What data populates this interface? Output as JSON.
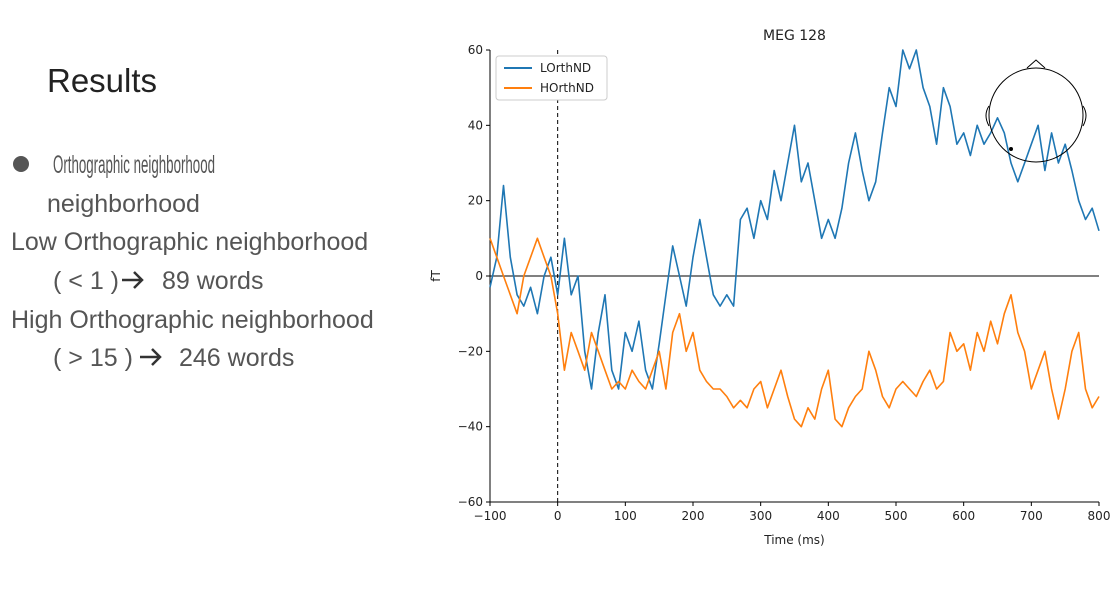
{
  "slide": {
    "title": "Results",
    "bullet": "Orthographic neighborhood",
    "items": [
      {
        "label": "Low Orthographic neighborhood",
        "condition": "( < 1 )",
        "count": "89 words"
      },
      {
        "label": "High Orthographic neighborhood",
        "condition": "( > 15 )",
        "count": "246 words"
      }
    ]
  },
  "chart_data": {
    "type": "line",
    "title": "MEG 128",
    "xlabel": "Time (ms)",
    "ylabel": "fT",
    "x": [
      -100,
      -90,
      -80,
      -70,
      -60,
      -50,
      -40,
      -30,
      -20,
      -10,
      0,
      10,
      20,
      30,
      40,
      50,
      60,
      70,
      80,
      90,
      100,
      110,
      120,
      130,
      140,
      150,
      160,
      170,
      180,
      190,
      200,
      210,
      220,
      230,
      240,
      250,
      260,
      270,
      280,
      290,
      300,
      310,
      320,
      330,
      340,
      350,
      360,
      370,
      380,
      390,
      400,
      410,
      420,
      430,
      440,
      450,
      460,
      470,
      480,
      490,
      500,
      510,
      520,
      530,
      540,
      550,
      560,
      570,
      580,
      590,
      600,
      610,
      620,
      630,
      640,
      650,
      660,
      670,
      680,
      690,
      700,
      710,
      720,
      730,
      740,
      750,
      760,
      770,
      780,
      790,
      800
    ],
    "series": [
      {
        "name": "LOrthND",
        "color": "#1f77b4",
        "values": [
          -3,
          5,
          24,
          5,
          -5,
          -8,
          -3,
          -10,
          0,
          5,
          -5,
          10,
          -5,
          0,
          -20,
          -30,
          -15,
          -5,
          -25,
          -30,
          -15,
          -20,
          -12,
          -25,
          -30,
          -18,
          -5,
          8,
          0,
          -8,
          5,
          15,
          5,
          -5,
          -8,
          -5,
          -8,
          15,
          18,
          10,
          20,
          15,
          28,
          20,
          30,
          40,
          25,
          30,
          20,
          10,
          15,
          10,
          18,
          30,
          38,
          28,
          20,
          25,
          38,
          50,
          45,
          60,
          55,
          60,
          50,
          45,
          35,
          50,
          45,
          35,
          38,
          32,
          40,
          35,
          38,
          42,
          38,
          30,
          25,
          30,
          35,
          40,
          28,
          38,
          30,
          35,
          28,
          20,
          15,
          18,
          12
        ]
      },
      {
        "name": "HOrthND",
        "color": "#ff7f0e",
        "values": [
          10,
          5,
          0,
          -5,
          -10,
          0,
          5,
          10,
          5,
          0,
          -10,
          -25,
          -15,
          -20,
          -25,
          -15,
          -20,
          -25,
          -30,
          -28,
          -30,
          -25,
          -28,
          -30,
          -25,
          -20,
          -30,
          -15,
          -10,
          -20,
          -15,
          -25,
          -28,
          -30,
          -30,
          -32,
          -35,
          -33,
          -35,
          -30,
          -28,
          -35,
          -30,
          -25,
          -32,
          -38,
          -40,
          -35,
          -38,
          -30,
          -25,
          -38,
          -40,
          -35,
          -32,
          -30,
          -20,
          -25,
          -32,
          -35,
          -30,
          -28,
          -30,
          -32,
          -28,
          -25,
          -30,
          -28,
          -15,
          -20,
          -18,
          -25,
          -15,
          -20,
          -12,
          -18,
          -10,
          -5,
          -15,
          -20,
          -30,
          -25,
          -20,
          -30,
          -38,
          -30,
          -20,
          -15,
          -30,
          -35,
          -32
        ]
      }
    ],
    "xlim": [
      -100,
      800
    ],
    "ylim": [
      -60,
      60
    ],
    "xticks": [
      {
        "value": -100,
        "label": "−100"
      },
      0,
      100,
      200,
      300,
      400,
      500,
      600,
      700,
      800
    ],
    "yticks": [
      {
        "value": -60,
        "label": "−60"
      },
      {
        "value": -40,
        "label": "−40"
      },
      {
        "value": -20,
        "label": "−20"
      },
      0,
      20,
      40,
      60
    ],
    "vline": 0,
    "hline": 0,
    "legend": "upper left",
    "grid": false
  }
}
